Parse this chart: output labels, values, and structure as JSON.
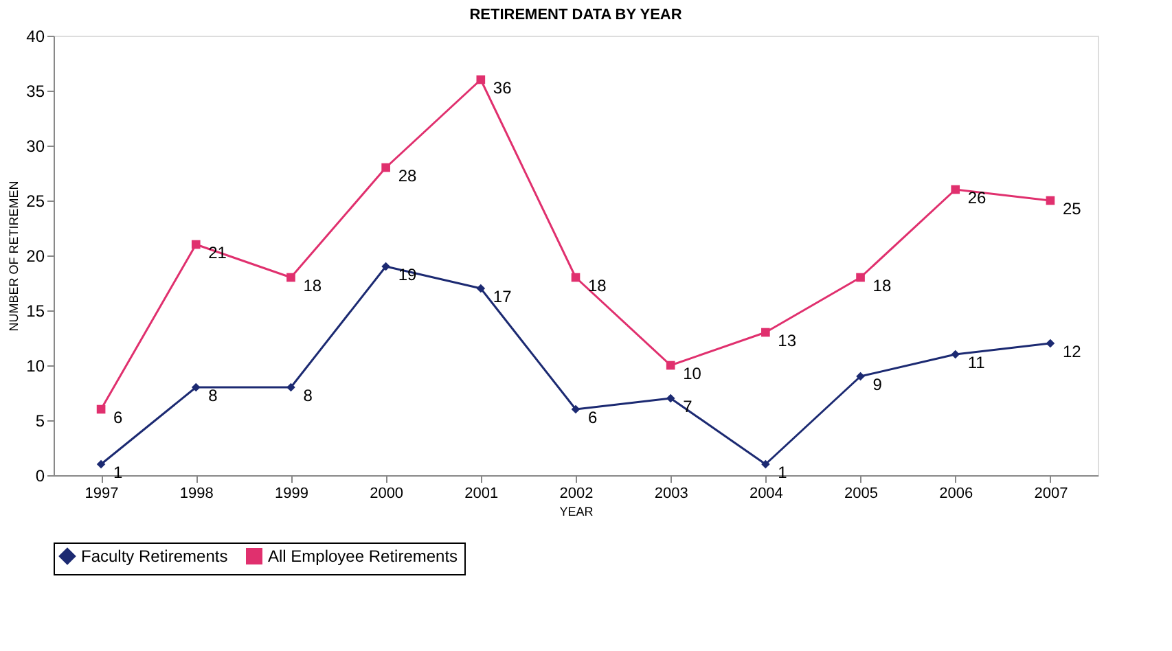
{
  "chart_data": {
    "type": "line",
    "title": "RETIREMENT DATA BY YEAR",
    "xlabel": "YEAR",
    "ylabel": "NUMBER OF RETIREMEN",
    "categories": [
      "1997",
      "1998",
      "1999",
      "2000",
      "2001",
      "2002",
      "2003",
      "2004",
      "2005",
      "2006",
      "2007"
    ],
    "series": [
      {
        "name": "Faculty Retirements",
        "color": "#1c2a72",
        "marker": "diamond",
        "values": [
          1,
          8,
          8,
          19,
          17,
          6,
          7,
          1,
          9,
          11,
          12
        ]
      },
      {
        "name": "All Employee Retirements",
        "color": "#e0306e",
        "marker": "square",
        "values": [
          6,
          21,
          18,
          28,
          36,
          18,
          10,
          13,
          18,
          26,
          25
        ]
      }
    ],
    "ylim": [
      0,
      40
    ],
    "yticks": [
      0,
      5,
      10,
      15,
      20,
      25,
      30,
      35,
      40
    ],
    "grid": false,
    "legend": "bottom",
    "data_labels": true,
    "line_style": "solid"
  }
}
